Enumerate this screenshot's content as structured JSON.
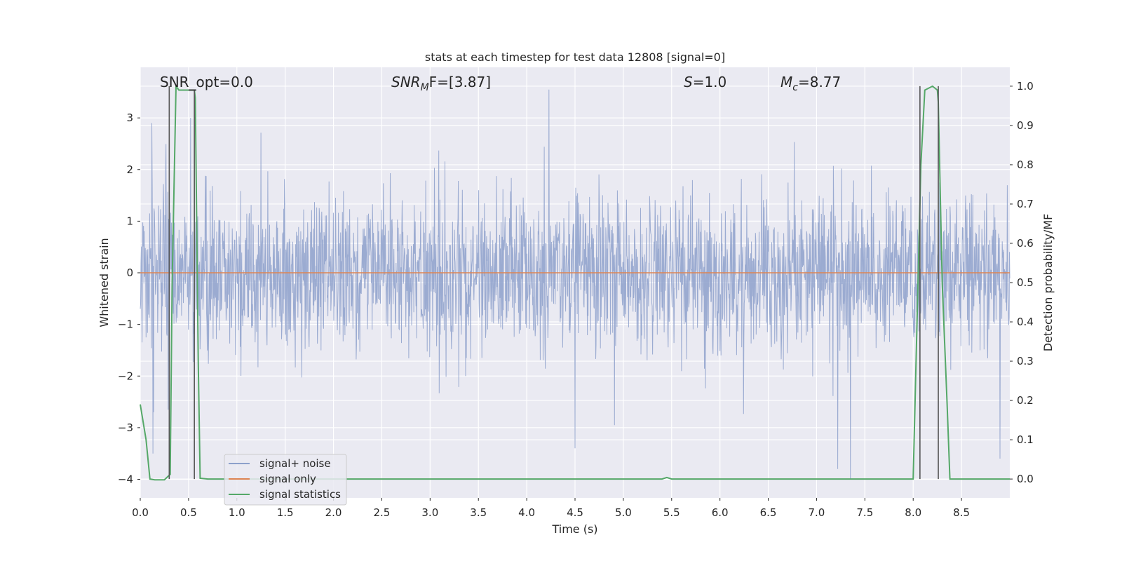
{
  "chart_data": {
    "type": "line",
    "title": "stats at each timestep for test data 12808 [signal=0]",
    "xlabel": "Time (s)",
    "ylabel": "Whitened strain",
    "ylabel_right": "Detection probability/MF",
    "xlim": [
      0.0,
      9.0
    ],
    "ylim": [
      -4.36,
      3.98
    ],
    "ylim_right": [
      -0.048,
      1.048
    ],
    "xticks": [
      "0.0",
      "0.5",
      "1.0",
      "1.5",
      "2.0",
      "2.5",
      "3.0",
      "3.5",
      "4.0",
      "4.5",
      "5.0",
      "5.5",
      "6.0",
      "6.5",
      "7.0",
      "7.5",
      "8.0",
      "8.5"
    ],
    "yticks": [
      "−4",
      "−3",
      "−2",
      "−1",
      "0",
      "1",
      "2",
      "3"
    ],
    "yticks_right": [
      "0.0",
      "0.1",
      "0.2",
      "0.3",
      "0.4",
      "0.5",
      "0.6",
      "0.7",
      "0.8",
      "0.9",
      "1.0"
    ],
    "grid": true,
    "legend_position": "lower-left",
    "annotations": [
      {
        "id": "snr-opt",
        "text": "SNR_opt=0.0"
      },
      {
        "id": "snr-mf",
        "base": "SNR",
        "sub": "M",
        "tail": "F=[3.87]"
      },
      {
        "id": "s",
        "base": "S",
        "tail": "=1.0"
      },
      {
        "id": "mc",
        "base": "M",
        "sub": "c",
        "tail": "=8.77"
      }
    ],
    "series": [
      {
        "name": "signal+ noise",
        "axis": "left",
        "color": "#8da0cb",
        "style": "dense noise trace between about −4 and 3.5",
        "envelope": {
          "typical_low": -1.8,
          "typical_high": 1.8,
          "min": -4.0,
          "max": 3.55
        },
        "spikes": [
          {
            "x": 0.12,
            "y": 2.9
          },
          {
            "x": 0.14,
            "y": -2.7
          },
          {
            "x": 0.13,
            "y": -3.5
          },
          {
            "x": 0.52,
            "y": 3.0
          },
          {
            "x": 4.23,
            "y": 3.55
          },
          {
            "x": 4.5,
            "y": -3.4
          },
          {
            "x": 7.22,
            "y": -3.8
          },
          {
            "x": 7.35,
            "y": -4.0
          },
          {
            "x": 8.9,
            "y": -3.6
          }
        ]
      },
      {
        "name": "signal only",
        "axis": "left",
        "color": "#dd8452",
        "x": [
          0.0,
          9.0
        ],
        "y": [
          0.0,
          0.0
        ]
      },
      {
        "name": "signal statistics",
        "axis": "right",
        "color": "#55a868",
        "x": [
          0.0,
          0.06,
          0.1,
          0.15,
          0.25,
          0.31,
          0.33,
          0.37,
          0.4,
          0.5,
          0.56,
          0.57,
          0.6,
          0.62,
          0.7,
          1.0,
          2.0,
          3.0,
          4.0,
          5.0,
          5.4,
          5.45,
          5.5,
          6.0,
          7.0,
          7.5,
          8.0,
          8.05,
          8.08,
          8.12,
          8.2,
          8.25,
          8.26,
          8.3,
          8.35,
          8.38,
          8.5,
          9.0
        ],
        "y": [
          0.19,
          0.1,
          0.0,
          -0.002,
          -0.002,
          0.012,
          0.5,
          1.0,
          0.99,
          0.99,
          0.99,
          0.97,
          0.3,
          0.002,
          0.0,
          0.0,
          0.0,
          0.0,
          0.0,
          0.0,
          0.0,
          0.004,
          0.0,
          0.0,
          0.0,
          0.0,
          0.0,
          0.5,
          0.8,
          0.99,
          1.0,
          0.99,
          0.96,
          0.5,
          0.2,
          0.0,
          0.0,
          0.0
        ]
      }
    ],
    "markers": {
      "color": "#555555",
      "vertical_lines": [
        {
          "x": 0.3,
          "y_from": 0.0,
          "y_to": 1.0
        },
        {
          "x": 0.56,
          "y_from": 0.0,
          "y_to": 0.99
        },
        {
          "x": 8.07,
          "y_from": 0.0,
          "y_to": 1.0
        },
        {
          "x": 8.26,
          "y_from": 0.0,
          "y_to": 1.0
        }
      ],
      "horizontal_segments": [
        {
          "x_from": 0.5,
          "x_to": 0.58,
          "y": 0.99
        }
      ]
    }
  }
}
